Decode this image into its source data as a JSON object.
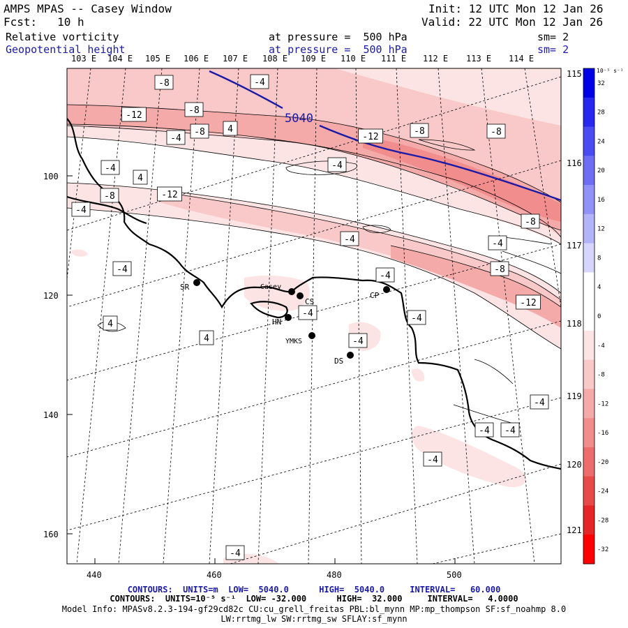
{
  "header": {
    "title": "AMPS MPAS -- Casey Window",
    "init": "Init: 12 UTC Mon 12 Jan 26",
    "fcst": "Fcst:   10 h",
    "valid": "Valid: 22 UTC Mon 12 Jan 26",
    "field1": {
      "name": "Relative vorticity",
      "level": "at pressure =  500 hPa",
      "sm": "sm= 2"
    },
    "field2": {
      "name": "Geopotential height",
      "level": "at pressure =  500 hPa",
      "sm": "sm= 2"
    }
  },
  "map": {
    "top_lon_labels": [
      "103 E",
      "104 E",
      "105 E",
      "106 E",
      "107 E",
      "108 E",
      "109 E",
      "110 E",
      "111 E",
      "112 E",
      "113 E",
      "114 E"
    ],
    "right_lon_labels": [
      "115 E",
      "116 E",
      "117 E",
      "118 E",
      "119 E",
      "120 E",
      "121 E"
    ],
    "x_ticks": [
      "440",
      "460",
      "480",
      "500"
    ],
    "y_ticks": [
      "100",
      "120",
      "140",
      "160"
    ],
    "contour_label_height": "5040",
    "vorticity_labels": [
      "-8",
      "-4",
      "-12",
      "-8",
      "-4",
      "-8",
      "4",
      "-4",
      "-4",
      "4",
      "-12",
      "-8",
      "-8",
      "-4",
      "-8",
      "-12",
      "-8",
      "-4",
      "-4",
      "-8",
      "-4",
      "-12",
      "4",
      "4",
      "-4",
      "-4",
      "-4",
      "-4",
      "-4",
      "-4",
      "-4",
      "-4",
      "-4"
    ],
    "stations": [
      "SR",
      "Casey",
      "CS",
      "HN",
      "YMKS",
      "DS",
      "CP"
    ]
  },
  "colorbar": {
    "unit": "10⁻⁵ s⁻¹",
    "ticks": [
      "32",
      "28",
      "24",
      "20",
      "16",
      "12",
      "8",
      "4",
      "0",
      "-4",
      "-8",
      "-12",
      "-16",
      "-20",
      "-24",
      "-28",
      "-32"
    ],
    "colors": [
      "#0000e6",
      "#2727f0",
      "#4b4bf2",
      "#6e6ef4",
      "#9191f7",
      "#b3b3fa",
      "#d6d6fc",
      "#ffffff",
      "#ffffff",
      "#fce4e4",
      "#f9c8c8",
      "#f5aaaa",
      "#f18d8d",
      "#ed6d6d",
      "#e84a4a",
      "#e42626",
      "#ff0000"
    ]
  },
  "footer": {
    "line1": "CONTOURS:  UNITS=m  LOW=  5040.0      HIGH=  5040.0     INTERVAL=   60.000",
    "line2": "CONTOURS:  UNITS=10⁻⁵ s⁻¹  LOW= -32.000      HIGH=  32.000     INTERVAL=   4.0000",
    "line3": "Model Info: MPASv8.2.3-194-gf29cd82c CU:cu_grell_freitas PBL:bl_mynn MP:mp_thompson SF:sf_noahmp 8.0",
    "line4": "LW:rrtmg_lw SW:rrtmg_sw SFLAY:sf_mynn"
  }
}
